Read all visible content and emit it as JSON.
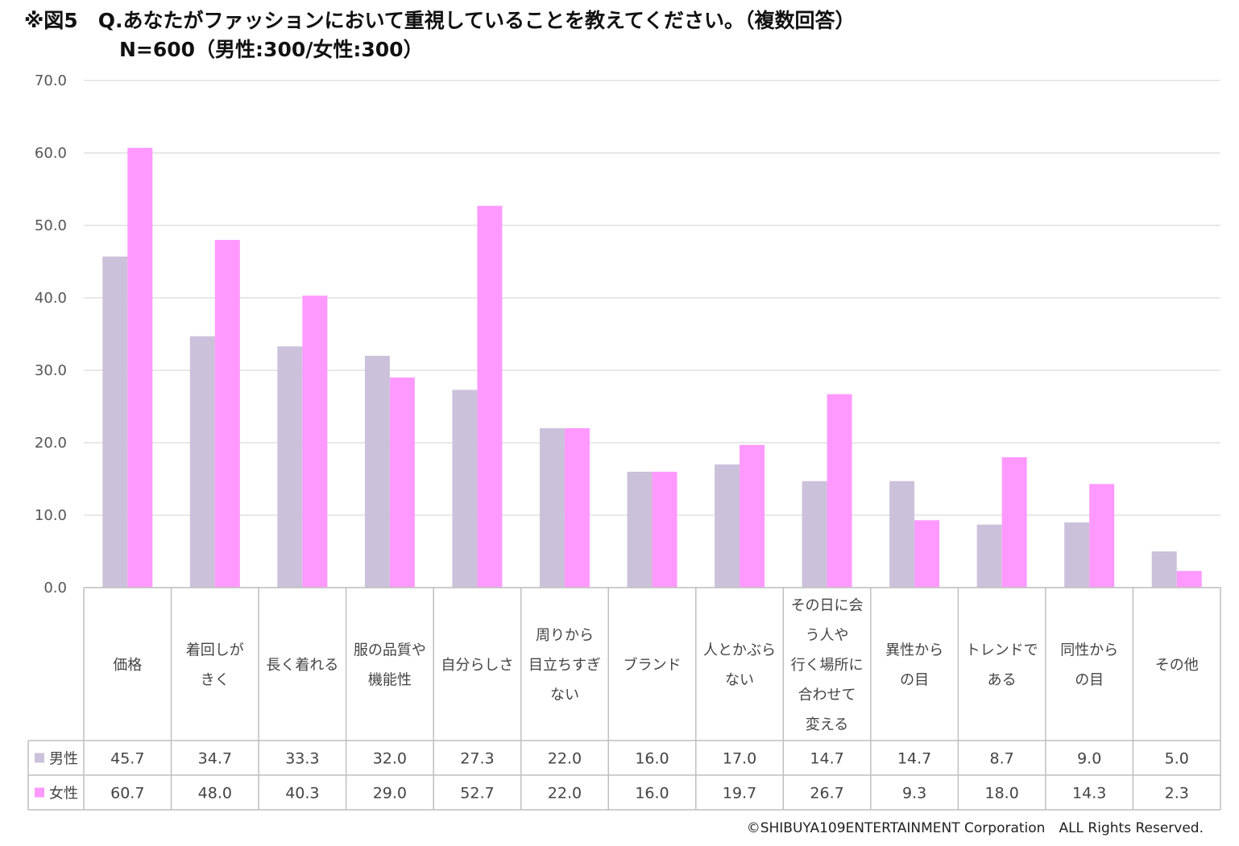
{
  "title_line1": "※図5　Q.あなたがファッションにおいて重視していることを教えてください。（複数回答）",
  "title_line2": "N=600（男性:300/女性:300）",
  "copyright": "©SHIBUYA109ENTERTAINMENT Corporation　ALL Rights Reserved.",
  "colors": {
    "male": "#ccc1da",
    "female": "#ff99ff",
    "grid": "#d9d9d9",
    "table_border": "#bfbfbf"
  },
  "chart_data": {
    "type": "bar",
    "ylim": [
      0,
      70
    ],
    "yticks": [
      "0.0",
      "10.0",
      "20.0",
      "30.0",
      "40.0",
      "50.0",
      "60.0",
      "70.0"
    ],
    "categories": [
      [
        "価格"
      ],
      [
        "着回しが",
        "きく"
      ],
      [
        "長く着れる"
      ],
      [
        "服の品質や",
        "機能性"
      ],
      [
        "自分らしさ"
      ],
      [
        "周りから",
        "目立ちすぎ",
        "ない"
      ],
      [
        "ブランド"
      ],
      [
        "人とかぶら",
        "ない"
      ],
      [
        "その日に会",
        "う人や",
        "行く場所に",
        "合わせて",
        "変える"
      ],
      [
        "異性から",
        "の目"
      ],
      [
        "トレンドで",
        "ある"
      ],
      [
        "同性から",
        "の目"
      ],
      [
        "その他"
      ]
    ],
    "series": [
      {
        "name": "男性",
        "values": [
          "45.7",
          "34.7",
          "33.3",
          "32.0",
          "27.3",
          "22.0",
          "16.0",
          "17.0",
          "14.7",
          "14.7",
          "8.7",
          "9.0",
          "5.0"
        ]
      },
      {
        "name": "女性",
        "values": [
          "60.7",
          "48.0",
          "40.3",
          "29.0",
          "52.7",
          "22.0",
          "16.0",
          "19.7",
          "26.7",
          "9.3",
          "18.0",
          "14.3",
          "2.3"
        ]
      }
    ]
  }
}
